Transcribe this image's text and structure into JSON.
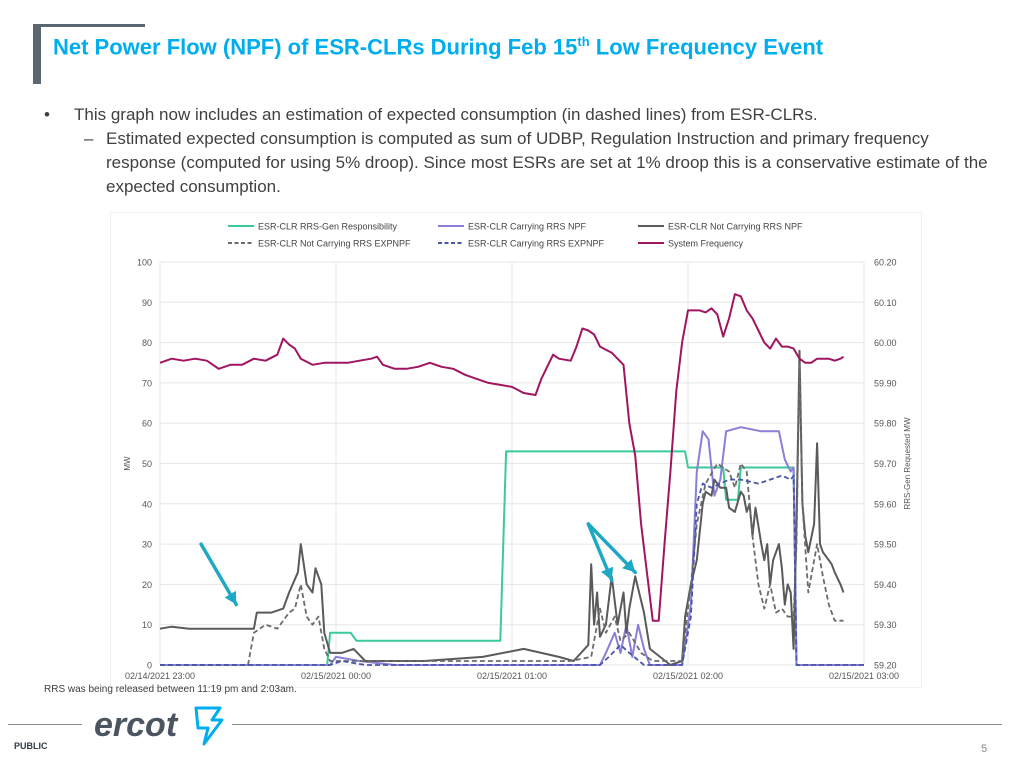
{
  "slide": {
    "title_main": "Net Power Flow (NPF) of ESR-CLRs During Feb 15",
    "title_sup": "th",
    "title_tail": " Low Frequency Event",
    "bullet_mark": "•",
    "bullet_text": "This graph now includes an estimation of expected consumption (in dashed lines) from ESR-CLRs.",
    "sub_mark": "–",
    "sub_text": "Estimated expected consumption is computed as sum of UDBP, Regulation Instruction and primary frequency response (computed for using 5% droop). Since most ESRs are set at 1% droop this is a conservative estimate of the expected consumption.",
    "footnote": "RRS was being released between 11:19 pm and 2:03am.",
    "footer_label": "PUBLIC",
    "page_number": "5",
    "logo_text": "ercot"
  },
  "chart_data": {
    "type": "line",
    "title": "",
    "xlabel": "",
    "ylabel": "MW",
    "y2label": "RRS-Gen Requested MW",
    "ylim": [
      0,
      100
    ],
    "y2lim": [
      59.2,
      60.2
    ],
    "grid": true,
    "legend_position": "top",
    "x_range": [
      0,
      240
    ],
    "x_ticks": [
      {
        "t": 0,
        "label": "02/14/2021 23:00"
      },
      {
        "t": 60,
        "label": "02/15/2021 00:00"
      },
      {
        "t": 120,
        "label": "02/15/2021 01:00"
      },
      {
        "t": 180,
        "label": "02/15/2021 02:00"
      },
      {
        "t": 240,
        "label": "02/15/2021 03:00"
      }
    ],
    "y_ticks": [
      "0",
      "10",
      "20",
      "30",
      "40",
      "50",
      "60",
      "70",
      "80",
      "90",
      "100"
    ],
    "y2_ticks": [
      "59.20",
      "59.30",
      "59.40",
      "59.50",
      "59.60",
      "59.70",
      "59.80",
      "59.90",
      "60.00",
      "60.10",
      "60.20"
    ],
    "x_unit": "minutes after 02/14/2021 23:00",
    "series": [
      {
        "name": "ESR-CLR RRS-Gen Responsibility",
        "color": "#3cc99a",
        "dash": false,
        "axis": "left",
        "points": [
          [
            0,
            0
          ],
          [
            57,
            0
          ],
          [
            58,
            8
          ],
          [
            65,
            8
          ],
          [
            67,
            6
          ],
          [
            116,
            6
          ],
          [
            118,
            53
          ],
          [
            179,
            53
          ],
          [
            180,
            49
          ],
          [
            192,
            49
          ],
          [
            193,
            41
          ],
          [
            197,
            41
          ],
          [
            198,
            49
          ],
          [
            216,
            49
          ],
          [
            217,
            0
          ],
          [
            240,
            0
          ]
        ]
      },
      {
        "name": "ESR-CLR Carrying RRS NPF",
        "color": "#8a7fd6",
        "dash": false,
        "axis": "left",
        "points": [
          [
            0,
            0
          ],
          [
            58,
            0
          ],
          [
            60,
            2
          ],
          [
            68,
            1
          ],
          [
            80,
            0
          ],
          [
            150,
            0
          ],
          [
            152,
            3
          ],
          [
            155,
            8
          ],
          [
            157,
            3
          ],
          [
            159,
            10
          ],
          [
            161,
            2
          ],
          [
            163,
            10
          ],
          [
            165,
            4
          ],
          [
            167,
            0
          ],
          [
            178,
            0
          ],
          [
            181,
            15
          ],
          [
            183,
            48
          ],
          [
            185,
            58
          ],
          [
            187,
            56
          ],
          [
            189,
            42
          ],
          [
            191,
            46
          ],
          [
            193,
            58
          ],
          [
            198,
            59
          ],
          [
            205,
            58
          ],
          [
            211,
            58
          ],
          [
            213,
            51
          ],
          [
            215,
            48
          ],
          [
            216,
            49
          ],
          [
            217,
            0
          ],
          [
            240,
            0
          ]
        ]
      },
      {
        "name": "ESR-CLR Not Carrying RRS NPF",
        "color": "#5a5a5a",
        "dash": false,
        "axis": "left",
        "points": [
          [
            0,
            9
          ],
          [
            4,
            9.5
          ],
          [
            10,
            9
          ],
          [
            20,
            9
          ],
          [
            32,
            9
          ],
          [
            33,
            13
          ],
          [
            38,
            13
          ],
          [
            42,
            14
          ],
          [
            44,
            18
          ],
          [
            47,
            23
          ],
          [
            48,
            30
          ],
          [
            50,
            20
          ],
          [
            52,
            18
          ],
          [
            53,
            24
          ],
          [
            55,
            20
          ],
          [
            56,
            8
          ],
          [
            58,
            3
          ],
          [
            62,
            3
          ],
          [
            66,
            4
          ],
          [
            70,
            1
          ],
          [
            90,
            1
          ],
          [
            110,
            2
          ],
          [
            124,
            4
          ],
          [
            130,
            3
          ],
          [
            136,
            2
          ],
          [
            141,
            1
          ],
          [
            146,
            5
          ],
          [
            147,
            25
          ],
          [
            148,
            10
          ],
          [
            149,
            18
          ],
          [
            150,
            7
          ],
          [
            152,
            10
          ],
          [
            154,
            22
          ],
          [
            156,
            10
          ],
          [
            158,
            18
          ],
          [
            159,
            8
          ],
          [
            160,
            14
          ],
          [
            162,
            22
          ],
          [
            165,
            13
          ],
          [
            167,
            4
          ],
          [
            174,
            0
          ],
          [
            178,
            1
          ],
          [
            179,
            12
          ],
          [
            181,
            20
          ],
          [
            183,
            26
          ],
          [
            185,
            40
          ],
          [
            186,
            43
          ],
          [
            188,
            42
          ],
          [
            189,
            46
          ],
          [
            191,
            44
          ],
          [
            193,
            44
          ],
          [
            194,
            39
          ],
          [
            196,
            38
          ],
          [
            198,
            43
          ],
          [
            199,
            42
          ],
          [
            200,
            38
          ],
          [
            201,
            40
          ],
          [
            202,
            32
          ],
          [
            203,
            39
          ],
          [
            205,
            30
          ],
          [
            206,
            26
          ],
          [
            207,
            30
          ],
          [
            208,
            20
          ],
          [
            209,
            26
          ],
          [
            211,
            30
          ],
          [
            212,
            24
          ],
          [
            213,
            15
          ],
          [
            214,
            20
          ],
          [
            215,
            18
          ],
          [
            216,
            4
          ],
          [
            217,
            35
          ],
          [
            218,
            78
          ],
          [
            219,
            40
          ],
          [
            220,
            32
          ],
          [
            221,
            28
          ],
          [
            223,
            35
          ],
          [
            224,
            55
          ],
          [
            225,
            30
          ],
          [
            226,
            28
          ],
          [
            228,
            26
          ],
          [
            229,
            25
          ],
          [
            230,
            23
          ],
          [
            232,
            20
          ],
          [
            233,
            18
          ]
        ]
      },
      {
        "name": "ESR-CLR Not Carrying RRS EXPNPF",
        "color": "#6b6b6b",
        "dash": true,
        "axis": "left",
        "points": [
          [
            0,
            0
          ],
          [
            30,
            0
          ],
          [
            32,
            8
          ],
          [
            36,
            10
          ],
          [
            40,
            9
          ],
          [
            44,
            13
          ],
          [
            46,
            14
          ],
          [
            48,
            20
          ],
          [
            50,
            12
          ],
          [
            52,
            10
          ],
          [
            54,
            12
          ],
          [
            56,
            4
          ],
          [
            58,
            1
          ],
          [
            140,
            1
          ],
          [
            147,
            2
          ],
          [
            150,
            14
          ],
          [
            152,
            8
          ],
          [
            155,
            12
          ],
          [
            157,
            6
          ],
          [
            160,
            8
          ],
          [
            164,
            3
          ],
          [
            168,
            1
          ],
          [
            178,
            1
          ],
          [
            179,
            8
          ],
          [
            181,
            20
          ],
          [
            183,
            35
          ],
          [
            186,
            45
          ],
          [
            190,
            50
          ],
          [
            194,
            48
          ],
          [
            196,
            44
          ],
          [
            198,
            50
          ],
          [
            200,
            48
          ],
          [
            202,
            32
          ],
          [
            204,
            20
          ],
          [
            206,
            14
          ],
          [
            208,
            20
          ],
          [
            210,
            13
          ],
          [
            212,
            14
          ],
          [
            214,
            12
          ],
          [
            216,
            12
          ],
          [
            217,
            30
          ],
          [
            218,
            75
          ],
          [
            219,
            40
          ],
          [
            221,
            18
          ],
          [
            224,
            30
          ],
          [
            226,
            22
          ],
          [
            228,
            15
          ],
          [
            230,
            11
          ],
          [
            233,
            11
          ]
        ]
      },
      {
        "name": "ESR-CLR Carrying RRS EXPNPF",
        "color": "#4a55a8",
        "dash": true,
        "axis": "left",
        "points": [
          [
            0,
            0
          ],
          [
            58,
            0
          ],
          [
            62,
            1
          ],
          [
            70,
            0
          ],
          [
            150,
            0
          ],
          [
            153,
            2
          ],
          [
            157,
            5
          ],
          [
            160,
            3
          ],
          [
            165,
            0
          ],
          [
            178,
            0
          ],
          [
            181,
            12
          ],
          [
            183,
            40
          ],
          [
            185,
            45
          ],
          [
            188,
            44
          ],
          [
            191,
            45
          ],
          [
            194,
            46
          ],
          [
            198,
            46
          ],
          [
            204,
            45
          ],
          [
            212,
            47
          ],
          [
            215,
            46
          ],
          [
            216,
            47
          ],
          [
            217,
            0
          ],
          [
            240,
            0
          ]
        ]
      },
      {
        "name": "System Frequency",
        "color": "#a01560",
        "dash": false,
        "axis": "right",
        "points": [
          [
            0,
            59.95
          ],
          [
            4,
            59.96
          ],
          [
            8,
            59.955
          ],
          [
            12,
            59.96
          ],
          [
            16,
            59.955
          ],
          [
            20,
            59.935
          ],
          [
            24,
            59.945
          ],
          [
            28,
            59.945
          ],
          [
            32,
            59.96
          ],
          [
            36,
            59.955
          ],
          [
            40,
            59.97
          ],
          [
            42,
            60.01
          ],
          [
            44,
            59.995
          ],
          [
            46,
            59.985
          ],
          [
            48,
            59.96
          ],
          [
            52,
            59.945
          ],
          [
            56,
            59.95
          ],
          [
            60,
            59.95
          ],
          [
            64,
            59.95
          ],
          [
            68,
            59.955
          ],
          [
            72,
            59.96
          ],
          [
            74,
            59.965
          ],
          [
            76,
            59.945
          ],
          [
            80,
            59.935
          ],
          [
            84,
            59.935
          ],
          [
            88,
            59.94
          ],
          [
            92,
            59.95
          ],
          [
            96,
            59.94
          ],
          [
            100,
            59.935
          ],
          [
            104,
            59.92
          ],
          [
            108,
            59.91
          ],
          [
            112,
            59.9
          ],
          [
            116,
            59.895
          ],
          [
            120,
            59.89
          ],
          [
            124,
            59.875
          ],
          [
            128,
            59.87
          ],
          [
            130,
            59.91
          ],
          [
            132,
            59.94
          ],
          [
            134,
            59.97
          ],
          [
            136,
            59.96
          ],
          [
            140,
            59.955
          ],
          [
            142,
            59.99
          ],
          [
            144,
            60.035
          ],
          [
            146,
            60.03
          ],
          [
            148,
            60.02
          ],
          [
            150,
            59.99
          ],
          [
            154,
            59.975
          ],
          [
            158,
            59.945
          ],
          [
            160,
            59.8
          ],
          [
            162,
            59.72
          ],
          [
            164,
            59.55
          ],
          [
            166,
            59.43
          ],
          [
            168,
            59.31
          ],
          [
            170,
            59.31
          ],
          [
            172,
            59.5
          ],
          [
            174,
            59.68
          ],
          [
            176,
            59.88
          ],
          [
            178,
            60.0
          ],
          [
            180,
            60.08
          ],
          [
            184,
            60.08
          ],
          [
            186,
            60.075
          ],
          [
            188,
            60.085
          ],
          [
            190,
            60.07
          ],
          [
            192,
            60.015
          ],
          [
            194,
            60.06
          ],
          [
            196,
            60.12
          ],
          [
            198,
            60.115
          ],
          [
            200,
            60.08
          ],
          [
            202,
            60.06
          ],
          [
            204,
            60.03
          ],
          [
            206,
            60.0
          ],
          [
            208,
            59.985
          ],
          [
            210,
            60.01
          ],
          [
            212,
            59.99
          ],
          [
            214,
            59.99
          ],
          [
            216,
            59.985
          ],
          [
            218,
            59.96
          ],
          [
            220,
            59.95
          ],
          [
            222,
            59.95
          ],
          [
            224,
            59.96
          ],
          [
            226,
            59.96
          ],
          [
            228,
            59.96
          ],
          [
            230,
            59.955
          ],
          [
            232,
            59.96
          ],
          [
            233,
            59.965
          ]
        ]
      }
    ],
    "annotations": [
      {
        "type": "arrow",
        "color": "#1ea8c4",
        "from": [
          14,
          30
        ],
        "to": [
          26,
          15
        ]
      },
      {
        "type": "arrow",
        "color": "#1ea8c4",
        "from": [
          146,
          35
        ],
        "to": [
          154,
          21
        ]
      },
      {
        "type": "arrow",
        "color": "#1ea8c4",
        "from": [
          146,
          35
        ],
        "to": [
          162,
          23
        ]
      }
    ]
  }
}
